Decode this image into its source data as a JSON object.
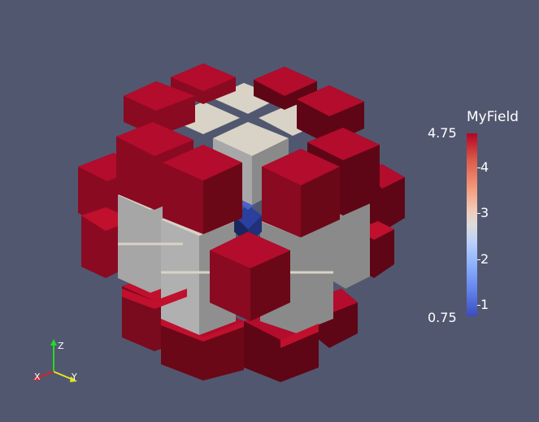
{
  "colorbar": {
    "title": "MyField",
    "range_max": "4.75",
    "range_min": "0.75",
    "min_value": 0.75,
    "max_value": 4.75,
    "ticks": [
      {
        "label": "4",
        "value": 4
      },
      {
        "label": "3",
        "value": 3
      },
      {
        "label": "2",
        "value": 2
      },
      {
        "label": "1",
        "value": 1
      }
    ],
    "colormap": "cool-to-warm"
  },
  "orientation_axes": {
    "z_label": "Z",
    "x_label": "X",
    "y_label": "Y",
    "z_color": "#22dd22",
    "x_color": "#dd2222",
    "y_color": "#e6e622"
  },
  "scene": {
    "background": "#525770",
    "colors": {
      "red_top": "#b30c2c",
      "red_left": "#8a0a22",
      "red_right": "#5e0616",
      "white_top": "#d8d3c6",
      "white_left": "#a8a8a8",
      "white_right": "#8a8a8a",
      "blue_center": "#2a3f9e",
      "blue_dark": "#1a2660"
    }
  }
}
